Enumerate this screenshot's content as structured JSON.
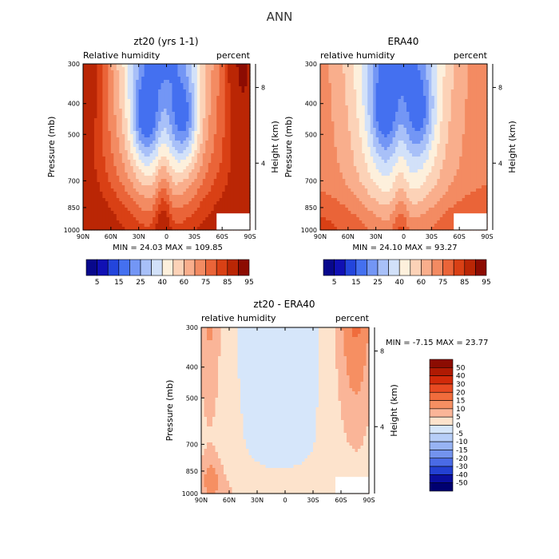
{
  "figure": {
    "title": "ANN"
  },
  "chart_data": [
    {
      "type": "heatmap",
      "title": "zt20 (yrs 1-1)",
      "subtitle_left": "Relative humidity",
      "subtitle_right": "percent",
      "xlabel": "",
      "ylabel": "Pressure (mb)",
      "ylabel_right": "Height (km)",
      "x_ticks": [
        "90N",
        "60N",
        "30N",
        "0",
        "30S",
        "60S",
        "90S"
      ],
      "y_ticks": [
        "300",
        "400",
        "500",
        "700",
        "850",
        "1000"
      ],
      "y_right_ticks": [
        "8",
        "4"
      ],
      "y_log_scale": true,
      "ylim": [
        1000,
        300
      ],
      "stats_text": "MIN = 24.03 MAX = 109.85",
      "min": 24.03,
      "max": 109.85,
      "colorbar": {
        "labels": [
          "5",
          "15",
          "25",
          "40",
          "60",
          "75",
          "85",
          "95"
        ],
        "colors": [
          "#08088C",
          "#1010B4",
          "#2345DC",
          "#4470F0",
          "#7396F5",
          "#A8C0F8",
          "#D2E1F9",
          "#FDF0DC",
          "#FCD2B7",
          "#F9AE8C",
          "#F38B62",
          "#EA6438",
          "#D94015",
          "#BA2605",
          "#8C0C02"
        ],
        "orientation": "horizontal"
      },
      "field": "A"
    },
    {
      "type": "heatmap",
      "title": "ERA40",
      "subtitle_left": "relative humidity",
      "subtitle_right": "percent",
      "xlabel": "",
      "ylabel": "Pressure (mb)",
      "ylabel_right": "Height (km)",
      "x_ticks": [
        "90N",
        "60N",
        "30N",
        "0",
        "30S",
        "60S",
        "90S"
      ],
      "y_ticks": [
        "300",
        "400",
        "500",
        "700",
        "850",
        "1000"
      ],
      "y_right_ticks": [
        "8",
        "4"
      ],
      "y_log_scale": true,
      "ylim": [
        1000,
        300
      ],
      "stats_text": "MIN = 24.10 MAX = 93.27",
      "min": 24.1,
      "max": 93.27,
      "colorbar": {
        "labels": [
          "5",
          "15",
          "25",
          "40",
          "60",
          "75",
          "85",
          "95"
        ],
        "colors": [
          "#08088C",
          "#1010B4",
          "#2345DC",
          "#4470F0",
          "#7396F5",
          "#A8C0F8",
          "#D2E1F9",
          "#FDF0DC",
          "#FCD2B7",
          "#F9AE8C",
          "#F38B62",
          "#EA6438",
          "#D94015",
          "#BA2605",
          "#8C0C02"
        ],
        "orientation": "horizontal"
      },
      "field": "B"
    },
    {
      "type": "heatmap",
      "title": "zt20 - ERA40",
      "subtitle_left": "relative humidity",
      "subtitle_right": "percent",
      "xlabel": "",
      "ylabel": "Pressure (mb)",
      "ylabel_right": "Height (km)",
      "x_ticks": [
        "90N",
        "60N",
        "30N",
        "0",
        "30S",
        "60S",
        "90S"
      ],
      "y_ticks": [
        "300",
        "400",
        "500",
        "700",
        "850",
        "1000"
      ],
      "y_right_ticks": [
        "8",
        "4"
      ],
      "y_log_scale": true,
      "ylim": [
        1000,
        300
      ],
      "stats_text": "MIN = -7.15 MAX = 23.77",
      "min": -7.15,
      "max": 23.77,
      "colorbar": {
        "labels": [
          "50",
          "40",
          "30",
          "20",
          "15",
          "10",
          "5",
          "0",
          "-5",
          "-10",
          "-15",
          "-20",
          "-30",
          "-40",
          "-50"
        ],
        "colors": [
          "#8C0C02",
          "#B01A03",
          "#D22A0A",
          "#E84A22",
          "#F06C3C",
          "#F68F62",
          "#FAB598",
          "#FDE3CC",
          "#D6E6FA",
          "#B7CEF8",
          "#97B3F3",
          "#7393EE",
          "#4A6BE6",
          "#2340D2",
          "#0A0E9E",
          "#000070"
        ],
        "orientation": "vertical"
      },
      "field": "D"
    }
  ]
}
